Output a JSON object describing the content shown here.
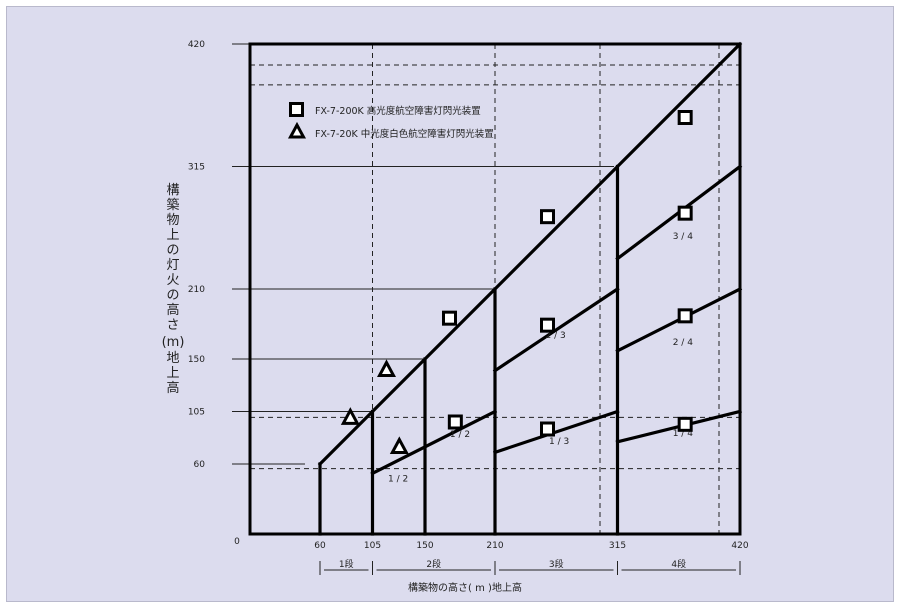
{
  "chart_data": {
    "type": "diagram",
    "y_axis": {
      "label_lines": [
        "構",
        "築",
        "物",
        "上",
        "の",
        "灯",
        "火",
        "の",
        "高",
        "さ",
        "(m)",
        "地",
        "上",
        "高"
      ],
      "ticks": [
        0,
        60,
        105,
        150,
        210,
        315,
        420
      ]
    },
    "x_axis": {
      "label": "構築物の高さ( m )地上高",
      "ticks": [
        60,
        105,
        150,
        210,
        315,
        420
      ],
      "origin_label": "0"
    },
    "stages": [
      {
        "label": "1段",
        "from": 60,
        "to": 105
      },
      {
        "label": "2段",
        "from": 105,
        "to": 210
      },
      {
        "label": "3段",
        "from": 210,
        "to": 315
      },
      {
        "label": "4段",
        "from": 315,
        "to": 420
      }
    ],
    "legend": [
      {
        "marker": "square",
        "label": "FX-7-200K 高光度航空障害灯閃光装置"
      },
      {
        "marker": "triangle",
        "label": "FX-7-20K 中光度白色航空障害灯閃光装置"
      }
    ],
    "fraction_labels": [
      {
        "text": "1 / 2",
        "x": 127,
        "y": 45
      },
      {
        "text": "1 / 2",
        "x": 180,
        "y": 83
      },
      {
        "text": "2 / 3",
        "x": 262,
        "y": 168
      },
      {
        "text": "1 / 3",
        "x": 265,
        "y": 77
      },
      {
        "text": "3 / 4",
        "x": 371,
        "y": 253
      },
      {
        "text": "2 / 4",
        "x": 371,
        "y": 162
      },
      {
        "text": "1 / 4",
        "x": 371,
        "y": 84
      }
    ],
    "square_markers": [
      {
        "x": 171,
        "y": 185
      },
      {
        "x": 176,
        "y": 96
      },
      {
        "x": 255,
        "y": 272
      },
      {
        "x": 255,
        "y": 179
      },
      {
        "x": 255,
        "y": 90
      },
      {
        "x": 373,
        "y": 357
      },
      {
        "x": 373,
        "y": 275
      },
      {
        "x": 373,
        "y": 187
      },
      {
        "x": 373,
        "y": 94
      }
    ],
    "triangle_markers": [
      {
        "x": 86,
        "y": 100
      },
      {
        "x": 117,
        "y": 141
      },
      {
        "x": 128,
        "y": 75
      }
    ]
  }
}
